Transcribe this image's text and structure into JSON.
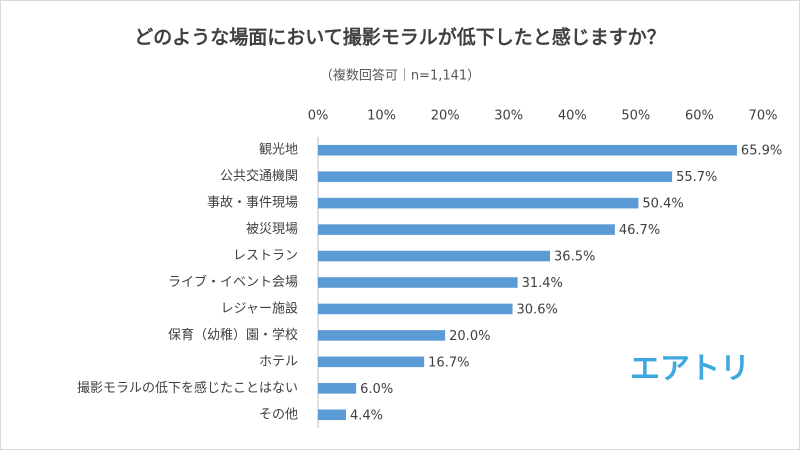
{
  "chart_data": {
    "type": "bar",
    "orientation": "horizontal",
    "title": "どのような場面において撮影モラルが低下したと感じますか？",
    "subtitle": "（複数回答可｜n=1,141）",
    "logo": "エアトリ",
    "categories": [
      "観光地",
      "公共交通機関",
      "事故・事件現場",
      "被災現場",
      "レストラン",
      "ライブ・イベント会場",
      "レジャー施設",
      "保育（幼稚）園・学校",
      "ホテル",
      "撮影モラルの低下を感じたことはない",
      "その他"
    ],
    "values": [
      65.9,
      55.7,
      50.4,
      46.7,
      36.5,
      31.4,
      30.6,
      20.0,
      16.7,
      6.0,
      4.4
    ],
    "value_labels": [
      "65.9%",
      "55.7%",
      "50.4%",
      "46.7%",
      "36.5%",
      "31.4%",
      "30.6%",
      "20.0%",
      "16.7%",
      "6.0%",
      "4.4%"
    ],
    "color": "#5b9bd5",
    "xlim": [
      0,
      70
    ],
    "xticks": [
      {
        "value": 0,
        "label": "0%"
      },
      {
        "value": 10,
        "label": "10%"
      },
      {
        "value": 20,
        "label": "20%"
      },
      {
        "value": 30,
        "label": "30%"
      },
      {
        "value": 40,
        "label": "40%"
      },
      {
        "value": 50,
        "label": "50%"
      },
      {
        "value": 60,
        "label": "60%"
      },
      {
        "value": 70,
        "label": "70%"
      }
    ],
    "grid": false
  }
}
